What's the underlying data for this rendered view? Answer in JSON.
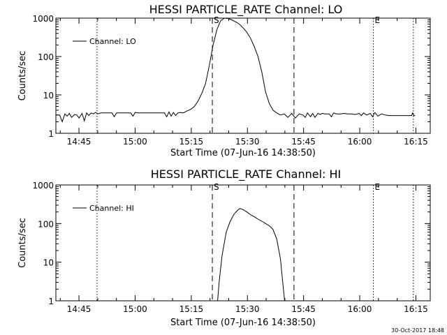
{
  "footer_stamp": "30-Oct-2017 18:48",
  "chart_data": [
    {
      "type": "line",
      "title": "HESSI PARTICLE_RATE Channel: LO",
      "xlabel": "Start Time (07-Jun-16 14:38:50)",
      "ylabel": "Counts/sec",
      "legend": {
        "label": "Channel: LO",
        "position": "top-left"
      },
      "x_range_minutes_after_14_38_50": [
        0,
        100
      ],
      "ylim": [
        1,
        1000
      ],
      "y_scale": "log",
      "x_tick_labels": [
        "14:45",
        "15:00",
        "15:15",
        "15:30",
        "15:45",
        "16:00",
        "16:15"
      ],
      "x_tick_minutes": [
        6.17,
        21.17,
        36.17,
        51.17,
        66.17,
        81.17,
        96.17
      ],
      "y_tick_labels": [
        "1",
        "10",
        "100",
        "1000"
      ],
      "y_tick_values": [
        1,
        10,
        100,
        1000
      ],
      "flare_markers": [
        {
          "label": "S",
          "minute": 41.8,
          "style": "dashed"
        },
        {
          "label": "",
          "minute": 63.6,
          "style": "dashed"
        },
        {
          "label": "E",
          "minute": 84.8,
          "style": "dotted"
        },
        {
          "label": "",
          "minute": 11.0,
          "style": "dotted"
        },
        {
          "label": "",
          "minute": 95.5,
          "style": "dotted"
        }
      ],
      "series": [
        {
          "name": "Channel: LO",
          "minutes": [
            0,
            1,
            1.7,
            2.4,
            3,
            3.6,
            4.2,
            5,
            5.6,
            6.2,
            7,
            7.6,
            8.2,
            8.8,
            9.4,
            10,
            10.6,
            11.2,
            12,
            13,
            14,
            15,
            15.6,
            16.2,
            17,
            18,
            19,
            20,
            20.6,
            21.2,
            22,
            23,
            24,
            25,
            26,
            27,
            28,
            29,
            29.6,
            30.2,
            30.8,
            31.4,
            32,
            32.6,
            33.2,
            34,
            35,
            36,
            37,
            38,
            39,
            40,
            41,
            42,
            43,
            44,
            45,
            46,
            47,
            48,
            49,
            50,
            51,
            52,
            53,
            54,
            55,
            56,
            57,
            58,
            59,
            60,
            61,
            62,
            63,
            64,
            65,
            66,
            66.6,
            67.2,
            68,
            68.6,
            69.2,
            70,
            70.6,
            71.2,
            72,
            73,
            73.6,
            74.2,
            75,
            76,
            77,
            78,
            79,
            80,
            81,
            81.6,
            82.2,
            83,
            84,
            84.6,
            85.2,
            86,
            87,
            88,
            89,
            90,
            91,
            92,
            93,
            94,
            95,
            95.3,
            95.6,
            96
          ],
          "values": [
            3.0,
            3.0,
            2.0,
            3.2,
            2.8,
            3.3,
            2.6,
            3.1,
            3.0,
            2.5,
            3.3,
            2.1,
            3.4,
            2.9,
            3.4,
            3.2,
            3.5,
            3.2,
            3.4,
            3.4,
            3.4,
            3.4,
            2.7,
            3.4,
            3.4,
            3.4,
            3.4,
            3.4,
            2.8,
            3.5,
            3.4,
            3.4,
            3.4,
            3.4,
            3.4,
            3.4,
            3.4,
            3.4,
            2.7,
            3.6,
            2.8,
            3.5,
            2.9,
            3.4,
            3.5,
            3.4,
            3.8,
            4.2,
            5.0,
            7.0,
            11.0,
            20,
            60,
            200,
            500,
            850,
            1000,
            980,
            900,
            800,
            700,
            560,
            430,
            300,
            180,
            100,
            40,
            12,
            6,
            4.0,
            3.4,
            3.0,
            3.2,
            2.6,
            3.3,
            2.5,
            3.2,
            3.0,
            2.6,
            3.4,
            2.7,
            3.3,
            2.6,
            3.3,
            3.1,
            3.3,
            3.2,
            3.2,
            2.7,
            3.4,
            3.2,
            3.2,
            3.3,
            3.2,
            3.2,
            3.1,
            3.3,
            2.9,
            3.4,
            3.0,
            3.3,
            2.7,
            3.5,
            2.8,
            3.2,
            3.0,
            2.9,
            2.9,
            2.9,
            2.9,
            2.9,
            2.9,
            2.9,
            3.4,
            2.9,
            2.9
          ]
        }
      ]
    },
    {
      "type": "line",
      "title": "HESSI PARTICLE_RATE Channel: HI",
      "xlabel": "Start Time (07-Jun-16 14:38:50)",
      "ylabel": "Counts/sec",
      "legend": {
        "label": "Channel: HI",
        "position": "top-left"
      },
      "x_range_minutes_after_14_38_50": [
        0,
        100
      ],
      "ylim": [
        1,
        1000
      ],
      "y_scale": "log",
      "x_tick_labels": [
        "14:45",
        "15:00",
        "15:15",
        "15:30",
        "15:45",
        "16:00",
        "16:15"
      ],
      "x_tick_minutes": [
        6.17,
        21.17,
        36.17,
        51.17,
        66.17,
        81.17,
        96.17
      ],
      "y_tick_labels": [
        "1",
        "10",
        "100",
        "1000"
      ],
      "y_tick_values": [
        1,
        10,
        100,
        1000
      ],
      "flare_markers": [
        {
          "label": "S",
          "minute": 41.8,
          "style": "dashed"
        },
        {
          "label": "",
          "minute": 63.6,
          "style": "dashed"
        },
        {
          "label": "E",
          "minute": 84.8,
          "style": "dotted"
        },
        {
          "label": "",
          "minute": 11.0,
          "style": "dotted"
        },
        {
          "label": "",
          "minute": 95.5,
          "style": "dotted"
        }
      ],
      "series": [
        {
          "name": "Channel: HI",
          "minutes": [
            43.2,
            43.6,
            44.4,
            45.5,
            46.5,
            47.5,
            48.5,
            49.2,
            50,
            51,
            52,
            53,
            54,
            55,
            56,
            57,
            58,
            59,
            60,
            60.6,
            61.1
          ],
          "values": [
            1.0,
            3.0,
            15,
            60,
            110,
            170,
            220,
            245,
            230,
            200,
            170,
            150,
            130,
            115,
            100,
            88,
            70,
            40,
            12,
            3.0,
            1.0
          ]
        }
      ]
    }
  ]
}
